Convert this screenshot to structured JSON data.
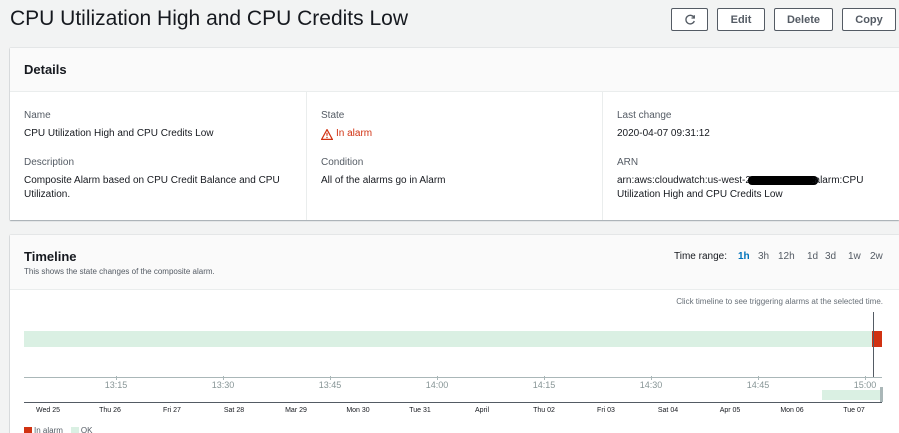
{
  "page": {
    "title": "CPU Utilization High and CPU Credits Low",
    "actions": {
      "refresh_icon": "refresh-icon",
      "edit": "Edit",
      "delete": "Delete",
      "copy": "Copy"
    }
  },
  "details": {
    "heading": "Details",
    "name_label": "Name",
    "name_value": "CPU Utilization High and CPU Credits Low",
    "description_label": "Description",
    "description_value": "Composite Alarm based on CPU Credit Balance and CPU Utilization.",
    "state_label": "State",
    "state_value": "In alarm",
    "state_icon": "warning-icon",
    "state_color": "#d13212",
    "condition_label": "Condition",
    "condition_value": "All of the alarms go in Alarm",
    "last_change_label": "Last change",
    "last_change_value": "2020-04-07 09:31:12",
    "arn_label": "ARN",
    "arn_prefix": "arn:aws:cloudwatch:us-west-2:",
    "arn_suffix": ":alarm:CPU Utilization High and CPU Credits Low"
  },
  "timeline": {
    "heading": "Timeline",
    "subtitle": "This shows the state changes of the composite alarm.",
    "time_range_label": "Time range:",
    "ranges": [
      "1h",
      "3h",
      "12h",
      "1d",
      "3d",
      "1w",
      "2w"
    ],
    "active_range": "1h",
    "hint": "Click timeline to see triggering alarms at the selected time.",
    "ticks": [
      "13:15",
      "13:30",
      "13:45",
      "14:00",
      "14:15",
      "14:30",
      "14:45",
      "15:00"
    ],
    "mini_ticks": [
      "Wed 25",
      "Thu 26",
      "Fri 27",
      "Sat 28",
      "Mar 29",
      "Mon 30",
      "Tue 31",
      "April",
      "Thu 02",
      "Fri 03",
      "Sat 04",
      "Apr 05",
      "Mon 06",
      "Tue 07"
    ],
    "ok_color": "#daf0e3",
    "alarm_color": "#d13212",
    "legend": [
      {
        "label": "In alarm",
        "color": "#d13212"
      },
      {
        "label": "OK",
        "color": "#daf0e3"
      }
    ]
  }
}
